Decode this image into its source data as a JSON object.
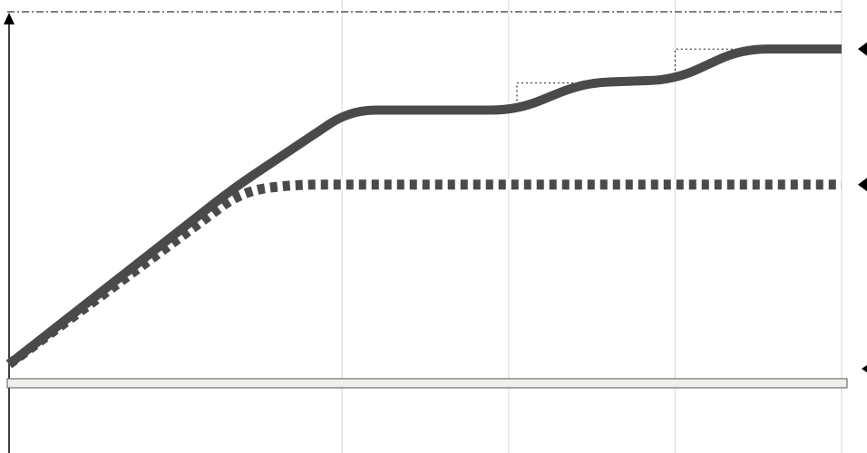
{
  "colors": {
    "series": "#484b4a",
    "dash_gap": "#ffffff",
    "axis": "#000000",
    "grid": "#d9d9d9",
    "timeline_fill": "#f0efec"
  },
  "chart_data": {
    "type": "line",
    "title": "",
    "xlabel": "",
    "ylabel": "",
    "xlim": [
      0,
      100
    ],
    "ylim": [
      0,
      100
    ],
    "grid": "vertical",
    "x_gridlines": [
      40,
      60,
      80,
      100
    ],
    "ceiling_y": 100,
    "series": [
      {
        "style": "solid",
        "points": [
          [
            0,
            0
          ],
          [
            27,
            52
          ],
          [
            41,
            75
          ],
          [
            61,
            75
          ],
          [
            69,
            83
          ],
          [
            80,
            84
          ],
          [
            88,
            93
          ],
          [
            100,
            93
          ]
        ],
        "step_guides": [
          [
            [
              61,
              75
            ],
            [
              61,
              83
            ],
            [
              69,
              83
            ]
          ],
          [
            [
              80,
              84
            ],
            [
              80,
              93
            ],
            [
              88,
              93
            ]
          ]
        ],
        "end_marker": "arrowhead"
      },
      {
        "style": "dashed",
        "points": [
          [
            0,
            0
          ],
          [
            28,
            51
          ],
          [
            34,
            53
          ],
          [
            100,
            53
          ]
        ],
        "end_marker": "arrowhead"
      }
    ],
    "timeline_bar": true
  }
}
